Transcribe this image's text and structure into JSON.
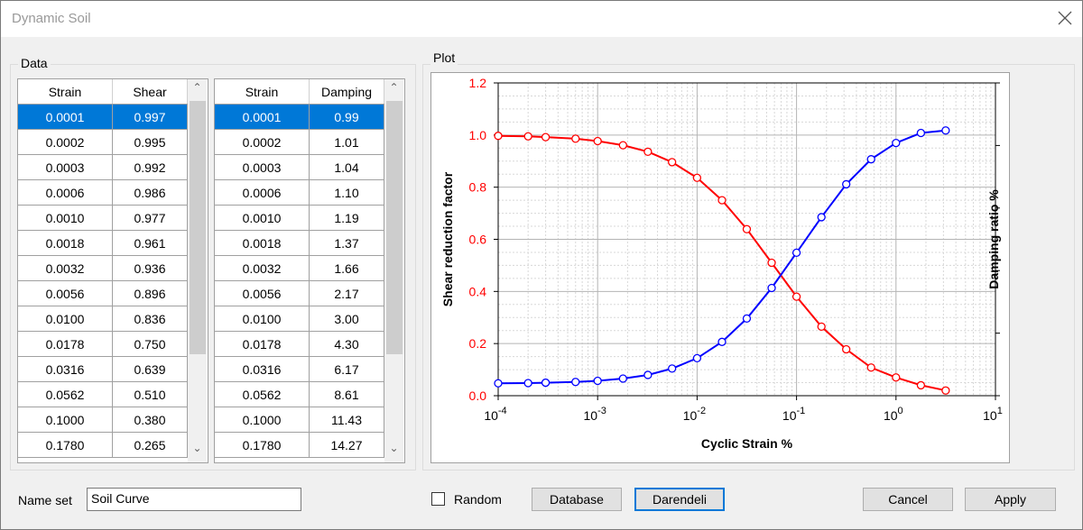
{
  "window": {
    "title": "Dynamic Soil"
  },
  "data_group": {
    "label": "Data"
  },
  "plot_group": {
    "label": "Plot"
  },
  "shear_grid": {
    "headers": [
      "Strain",
      "Shear"
    ],
    "rows": [
      [
        "0.0001",
        "0.997"
      ],
      [
        "0.0002",
        "0.995"
      ],
      [
        "0.0003",
        "0.992"
      ],
      [
        "0.0006",
        "0.986"
      ],
      [
        "0.0010",
        "0.977"
      ],
      [
        "0.0018",
        "0.961"
      ],
      [
        "0.0032",
        "0.936"
      ],
      [
        "0.0056",
        "0.896"
      ],
      [
        "0.0100",
        "0.836"
      ],
      [
        "0.0178",
        "0.750"
      ],
      [
        "0.0316",
        "0.639"
      ],
      [
        "0.0562",
        "0.510"
      ],
      [
        "0.1000",
        "0.380"
      ],
      [
        "0.1780",
        "0.265"
      ]
    ],
    "selected_row": 0
  },
  "damping_grid": {
    "headers": [
      "Strain",
      "Damping"
    ],
    "rows": [
      [
        "0.0001",
        "0.99"
      ],
      [
        "0.0002",
        "1.01"
      ],
      [
        "0.0003",
        "1.04"
      ],
      [
        "0.0006",
        "1.10"
      ],
      [
        "0.0010",
        "1.19"
      ],
      [
        "0.0018",
        "1.37"
      ],
      [
        "0.0032",
        "1.66"
      ],
      [
        "0.0056",
        "2.17"
      ],
      [
        "0.0100",
        "3.00"
      ],
      [
        "0.0178",
        "4.30"
      ],
      [
        "0.0316",
        "6.17"
      ],
      [
        "0.0562",
        "8.61"
      ],
      [
        "0.1000",
        "11.43"
      ],
      [
        "0.1780",
        "14.27"
      ]
    ],
    "selected_row": 0
  },
  "chart_data": {
    "type": "line",
    "title": "",
    "xlabel": "Cyclic Strain %",
    "ylabel": "Shear reduction factor",
    "y2label": "Damping ratio %",
    "x_scale": "log",
    "xlim": [
      0.0001,
      10
    ],
    "ylim": [
      0,
      1.2
    ],
    "y2lim": [
      0,
      25
    ],
    "x_ticks": [
      {
        "base": "10",
        "exp": "-4"
      },
      {
        "base": "10",
        "exp": "-3"
      },
      {
        "base": "10",
        "exp": "-2"
      },
      {
        "base": "10",
        "exp": "-1"
      },
      {
        "base": "10",
        "exp": "0"
      },
      {
        "base": "10",
        "exp": "1"
      }
    ],
    "y_ticks": [
      "0.0",
      "0.2",
      "0.4",
      "0.6",
      "0.8",
      "1.0",
      "1.2"
    ],
    "y2_ticks": [
      "0",
      "5",
      "10",
      "15",
      "20",
      "25"
    ],
    "grid": true,
    "colors": {
      "shear": "#ff0000",
      "damping": "#0000ff"
    },
    "series": [
      {
        "axis": "left",
        "color": "#ff0000",
        "x": [
          0.0001,
          0.0002,
          0.0003,
          0.0006,
          0.001,
          0.0018,
          0.0032,
          0.0056,
          0.01,
          0.0178,
          0.0316,
          0.0562,
          0.1,
          0.178,
          0.316,
          0.562,
          1.0,
          1.78,
          3.16
        ],
        "y": [
          0.997,
          0.995,
          0.992,
          0.986,
          0.977,
          0.961,
          0.936,
          0.896,
          0.836,
          0.75,
          0.639,
          0.51,
          0.38,
          0.265,
          0.178,
          0.108,
          0.07,
          0.04,
          0.02
        ]
      },
      {
        "axis": "right",
        "color": "#0000ff",
        "x": [
          0.0001,
          0.0002,
          0.0003,
          0.0006,
          0.001,
          0.0018,
          0.0032,
          0.0056,
          0.01,
          0.0178,
          0.0316,
          0.0562,
          0.1,
          0.178,
          0.316,
          0.562,
          1.0,
          1.78,
          3.16
        ],
        "y": [
          0.99,
          1.01,
          1.04,
          1.1,
          1.19,
          1.37,
          1.66,
          2.17,
          3.0,
          4.3,
          6.17,
          8.61,
          11.43,
          14.27,
          16.9,
          18.9,
          20.2,
          21.0,
          21.2
        ]
      }
    ]
  },
  "footer": {
    "name_set_label": "Name set",
    "name_set_value": "Soil Curve",
    "random_label": "Random",
    "random_checked": false,
    "database_label": "Database",
    "darendeli_label": "Darendeli",
    "cancel_label": "Cancel",
    "apply_label": "Apply"
  }
}
